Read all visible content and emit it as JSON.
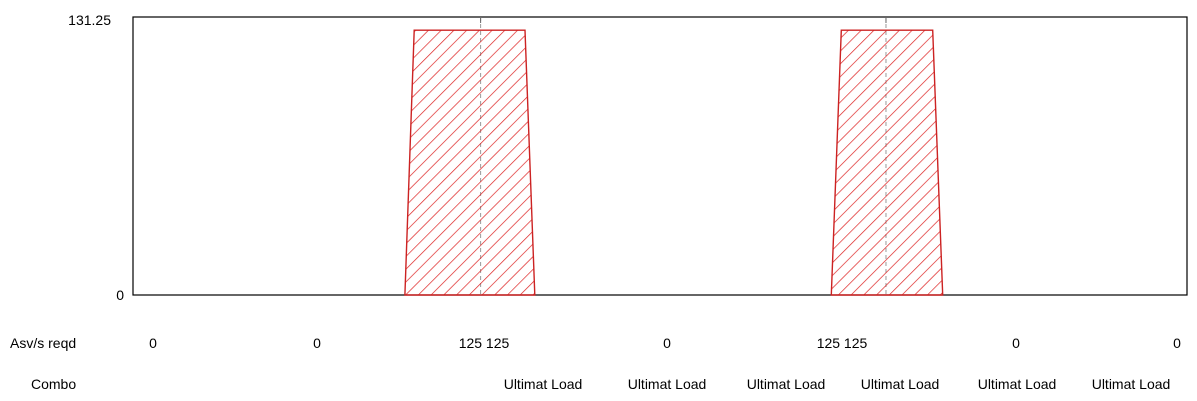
{
  "chart_data": {
    "type": "area",
    "ylim": [
      0,
      131.25
    ],
    "y_tick_labels": [
      "131.25",
      "0"
    ],
    "grid": false,
    "colors": {
      "fill_hatch": "#dd2222",
      "outline": "#cc2222",
      "divider": "#999999",
      "frame": "#000000"
    },
    "x_range": [
      0,
      1
    ],
    "series": [
      {
        "values_x": [
          0.258,
          0.2668,
          0.3298,
          0.3719,
          0.3812
        ],
        "values_y": [
          0,
          125,
          125,
          125,
          0
        ]
      },
      {
        "values_x": [
          0.6625,
          0.672,
          0.7144,
          0.7587,
          0.7682
        ],
        "values_y": [
          0,
          125,
          125,
          125,
          0
        ]
      }
    ],
    "dividers_x": [
      0.3298,
      0.7144
    ]
  },
  "rows": {
    "asv": {
      "label": "Asv/s reqd",
      "values": [
        "0",
        "0",
        "125 125",
        "0",
        "125 125",
        "0",
        "0"
      ]
    },
    "combo": {
      "label": "Combo",
      "values": [
        "Ultimat Load",
        "Ultimat Load",
        "Ultimat Load",
        "Ultimat Load",
        "Ultimat Load",
        "Ultimat Load"
      ]
    }
  }
}
